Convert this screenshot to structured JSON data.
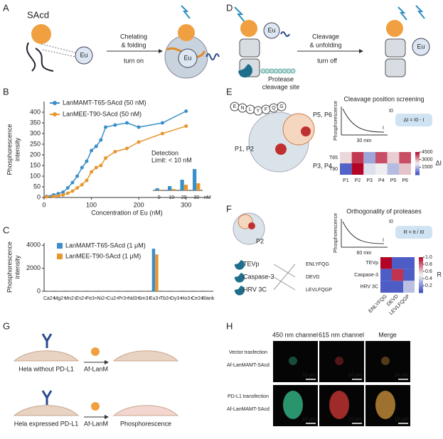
{
  "panel_letters": [
    "A",
    "B",
    "C",
    "D",
    "E",
    "F",
    "G",
    "H"
  ],
  "panel_a": {
    "protein": "SAcd",
    "ion": "Eu",
    "step": [
      "Chelating",
      "& folding"
    ],
    "switch": "turn on",
    "bound_ion": "Eu"
  },
  "panel_d": {
    "ion": "Eu",
    "step": [
      "Cleavage",
      "& unfolding"
    ],
    "switch": "turn off",
    "site": [
      "Protease",
      "cleavage site"
    ],
    "released_ion": "Eu"
  },
  "panel_e": {
    "sequence": [
      "E",
      "N",
      "L",
      "Y",
      "F",
      "Q",
      "G"
    ],
    "sites": [
      "P5, P6",
      "P1, P2",
      "P3, P4"
    ],
    "title": "Cleavage position screening",
    "axis": [
      "Phosphorescence",
      "Intensity"
    ],
    "start": "I0",
    "end": "I",
    "time": "30 min",
    "formula": "ΔI = I0 - I"
  },
  "panel_f": {
    "title": "Orthogonality of proteases",
    "site": "P2",
    "proteases": [
      "TEVp",
      "Caspase-3",
      "HRV 3C"
    ],
    "substrates": [
      "ENLYFQG",
      "DEVD",
      "LEVLFQGP"
    ],
    "axis": [
      "Phosphorescence",
      "Intensity"
    ],
    "start": "I0",
    "end": "I",
    "time": "60 min",
    "formula": "R = It / I0"
  },
  "panel_g": {
    "row1": "Hela without PD-L1",
    "reagent1": "Af-LanM",
    "row2": "Hela expressed PD-L1",
    "reagent2": "Af-LanM",
    "result": "Phosphorescence"
  },
  "panel_h": {
    "channels": [
      "450 nm channel",
      "615 nm channel",
      "Merge"
    ],
    "rows": [
      {
        "condition": "Vector trasfection",
        "probe": "Af-LanMAMT-SAcd"
      },
      {
        "condition": "PD-L1 transfection",
        "probe": "Af-LanMAMT-SAcd"
      }
    ],
    "scale_bar": "10 μm"
  },
  "chart_data": [
    {
      "type": "line",
      "xlabel": "Concentration of Eu (nM)",
      "ylabel": [
        "Phosphorescence",
        "intensity"
      ],
      "x": [
        5,
        20,
        30,
        40,
        50,
        60,
        70,
        80,
        90,
        100,
        110,
        120,
        130,
        150,
        175,
        200,
        250,
        300
      ],
      "xlim": [
        0,
        350
      ],
      "xticks": [
        0,
        100,
        200,
        300
      ],
      "ylim": [
        0,
        450
      ],
      "yticks": [
        0,
        50,
        100,
        150,
        200,
        250,
        300,
        350,
        400
      ],
      "series": [
        {
          "name": "LanMAMT-T65-SAcd (50 nM)",
          "color": "#3a8fc8",
          "values": [
            5,
            12,
            18,
            25,
            45,
            70,
            100,
            140,
            170,
            220,
            240,
            270,
            330,
            340,
            350,
            330,
            350,
            405
          ]
        },
        {
          "name": "LanMEE-T90-SAcd (50 nM)",
          "color": "#e8962e",
          "values": [
            3,
            5,
            8,
            12,
            20,
            30,
            45,
            60,
            80,
            120,
            140,
            150,
            185,
            215,
            230,
            260,
            300,
            335
          ]
        }
      ]
    },
    {
      "type": "bar",
      "categories": [
        "0",
        "10",
        "20",
        "30"
      ],
      "unit": "nM",
      "annotation": [
        "Detection",
        "Limit: < 10 nM"
      ],
      "series": [
        {
          "color": "#3a8fc8",
          "values": [
            3,
            6,
            15,
            30
          ]
        },
        {
          "color": "#e8962e",
          "values": [
            1,
            2,
            8,
            10
          ]
        }
      ]
    },
    {
      "type": "bar",
      "ylabel": [
        "Phosphorescence",
        "intensity"
      ],
      "categories": [
        "Ca2+",
        "Mg2+",
        "Mn2+",
        "Zn2+",
        "Fe3+",
        "Ni2+",
        "Cu2+",
        "Pr3+",
        "Nd3+",
        "Sm3+",
        "Eu3+",
        "Tb3+",
        "Dy3+",
        "Ho3+",
        "Ce3+",
        "Blank"
      ],
      "ylim": [
        0,
        4200
      ],
      "yticks": [
        0,
        2000,
        4000
      ],
      "series": [
        {
          "name": "LanMAMT-T65-SAcd (1 μM)",
          "color": "#3a8fc8",
          "values": [
            10,
            15,
            10,
            10,
            15,
            10,
            10,
            20,
            15,
            10,
            3700,
            15,
            20,
            10,
            10,
            10
          ]
        },
        {
          "name": "LanMEE-T90-SAcd (1 μM)",
          "color": "#e8962e",
          "values": [
            10,
            10,
            10,
            10,
            10,
            10,
            10,
            10,
            10,
            10,
            3200,
            10,
            10,
            10,
            10,
            10
          ]
        }
      ]
    },
    {
      "type": "heatmap",
      "x": [
        "P1",
        "P2",
        "P3",
        "P4",
        "P5",
        "P6"
      ],
      "y": [
        "T65",
        "T90"
      ],
      "values": [
        [
          2500,
          4000,
          1200,
          3800,
          2600,
          3800
        ],
        [
          300,
          4500,
          2000,
          2200,
          1500,
          2700
        ]
      ],
      "zlim": [
        0,
        4500
      ],
      "zticks": [
        1500,
        3000,
        4500
      ],
      "zlabel": "ΔI"
    },
    {
      "type": "heatmap",
      "x": [
        "ENLYFQG",
        "DEVD",
        "LEVLFQGP"
      ],
      "y": [
        "TEVp",
        "Caspase-3",
        "HRV 3C"
      ],
      "values": [
        [
          1.0,
          0.05,
          0.05
        ],
        [
          0.05,
          0.9,
          0.05
        ],
        [
          0.05,
          0.05,
          0.35
        ]
      ],
      "zlim": [
        0,
        1
      ],
      "zticks": [
        0.2,
        0.4,
        0.6,
        0.8,
        {
          "value": 1,
          "label": "1.0"
        }
      ],
      "zlabel": "R"
    }
  ]
}
